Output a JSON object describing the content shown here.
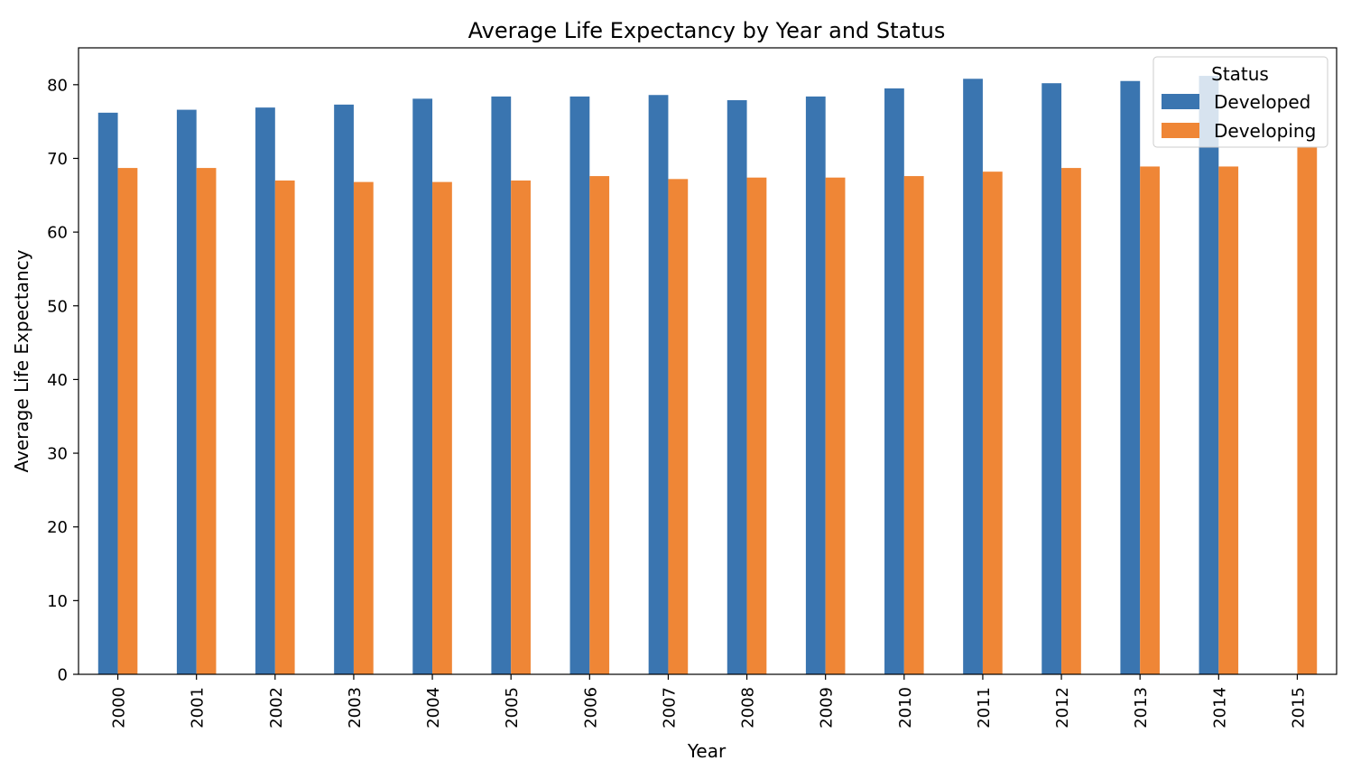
{
  "chart_data": {
    "type": "bar",
    "title": "Average Life Expectancy by Year and Status",
    "xlabel": "Year",
    "ylabel": "Average Life Expectancy",
    "categories": [
      "2000",
      "2001",
      "2002",
      "2003",
      "2004",
      "2005",
      "2006",
      "2007",
      "2008",
      "2009",
      "2010",
      "2011",
      "2012",
      "2013",
      "2014",
      "2015"
    ],
    "series": [
      {
        "name": "Developed",
        "color": "#3a75b0",
        "values": [
          76.2,
          76.6,
          76.9,
          77.3,
          78.1,
          78.4,
          78.4,
          78.6,
          77.9,
          78.4,
          79.5,
          80.8,
          80.2,
          80.5,
          81.2,
          null
        ]
      },
      {
        "name": "Developing",
        "color": "#ef8636",
        "values": [
          68.7,
          68.7,
          67.0,
          66.8,
          66.8,
          67.0,
          67.6,
          67.2,
          67.4,
          67.4,
          67.6,
          68.2,
          68.7,
          68.9,
          68.9,
          71.6
        ]
      }
    ],
    "yticks": [
      0,
      10,
      20,
      30,
      40,
      50,
      60,
      70,
      80
    ],
    "ylim": [
      0,
      85
    ],
    "grid": false,
    "legend": {
      "title": "Status",
      "position": "top-right"
    }
  }
}
